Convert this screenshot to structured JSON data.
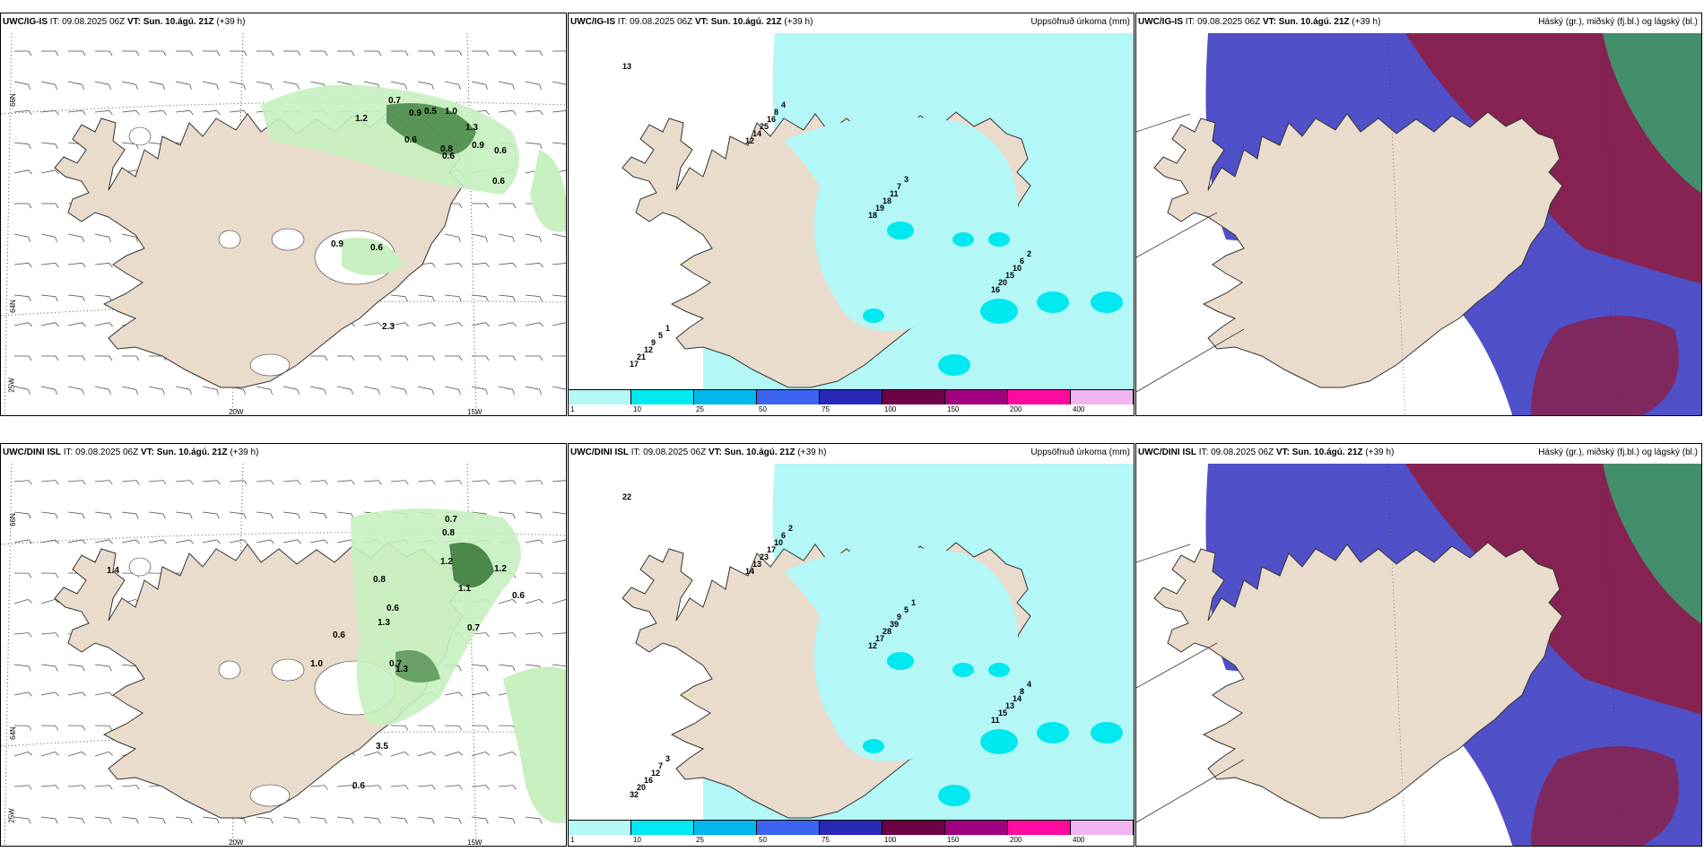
{
  "rows": [
    {
      "model": "UWC/IG-IS",
      "panels": [
        {
          "id": "wind",
          "title_model": "UWC/IG-IS",
          "title_it": " IT: 09.08.2025 06Z ",
          "title_vt_label": "VT:",
          "title_vt": " Sun. 10.ágú. 21Z",
          "title_lead": " (+39 h)",
          "right_title": "",
          "labels": [
            "0.7",
            "1.2",
            "0.9",
            "0.5",
            "1.0",
            "1.3",
            "0.6",
            "0.8",
            "0.6",
            "0.9",
            "0.6",
            "0.6",
            "0.9",
            "0.6",
            "2.3"
          ],
          "axis": {
            "lat_top": "66N",
            "lat_mid": "64N",
            "lon_left": "20W",
            "lon_right": "15W",
            "lon_far": "25W"
          }
        },
        {
          "id": "precip",
          "title_model": "UWC/IG-IS",
          "title_it": " IT: 09.08.2025 06Z ",
          "title_vt_label": "VT:",
          "title_vt": " Sun. 10.ágú. 21Z",
          "title_lead": " (+39 h)",
          "right_title": "Uppsöfnuð úrkoma (mm)",
          "labels": [
            "13",
            "12",
            "18",
            "16",
            "17",
            "14",
            "19",
            "20",
            "21",
            "25",
            "18",
            "15",
            "12",
            "16",
            "11",
            "10",
            "9",
            "8",
            "7",
            "6",
            "5",
            "4",
            "3",
            "2",
            "1"
          ]
        },
        {
          "id": "cloud",
          "title_model": "UWC/IG-IS",
          "title_it": " IT: 09.08.2025 06Z ",
          "title_vt_label": "VT:",
          "title_vt": " Sun. 10.ágú. 21Z",
          "title_lead": " (+39 h)",
          "right_title": "Háský (gr.), miðský (fj.bl.) og lágský (bl.)"
        }
      ]
    },
    {
      "model": "UWC/DINI ISL",
      "panels": [
        {
          "id": "wind",
          "title_model": "UWC/DINI ISL",
          "title_it": " IT: 09.08.2025 06Z ",
          "title_vt_label": "VT:",
          "title_vt": " Sun. 10.ágú. 21Z",
          "title_lead": " (+39 h)",
          "right_title": "",
          "labels": [
            "0.7",
            "0.8",
            "1.2",
            "1.2",
            "0.8",
            "1.1",
            "0.6",
            "1.3",
            "0.7",
            "0.6",
            "1.0",
            "0.7",
            "1.3",
            "3.5",
            "0.6",
            "1.4",
            "0.6"
          ],
          "axis": {
            "lat_top": "66N",
            "lat_mid": "64N",
            "lon_left": "20W",
            "lon_right": "15W",
            "lon_far": "25W"
          }
        },
        {
          "id": "precip",
          "title_model": "UWC/DINI ISL",
          "title_it": " IT: 09.08.2025 06Z ",
          "title_vt_label": "VT:",
          "title_vt": " Sun. 10.ágú. 21Z",
          "title_lead": " (+39 h)",
          "right_title": "Uppsöfnuð úrkoma (mm)",
          "labels": [
            "22",
            "14",
            "12",
            "11",
            "32",
            "13",
            "17",
            "15",
            "20",
            "23",
            "28",
            "13",
            "16",
            "17",
            "39",
            "14",
            "12",
            "10",
            "9",
            "8",
            "7",
            "6",
            "5",
            "4",
            "3",
            "2",
            "1"
          ]
        },
        {
          "id": "cloud",
          "title_model": "UWC/DINI ISL",
          "title_it": " IT: 09.08.2025 06Z ",
          "title_vt_label": "VT:",
          "title_vt": " Sun. 10.ágú. 21Z",
          "title_lead": " (+39 h)",
          "right_title": "Háský (gr.), miðský (fj.bl.) og lágský (bl.)"
        }
      ]
    }
  ],
  "colorbar": {
    "ticks": [
      "1",
      "10",
      "25",
      "50",
      "75",
      "100",
      "150",
      "200",
      "400"
    ],
    "colors": [
      "#b3f7f7",
      "#00e8f0",
      "#00b8ec",
      "#3c64f0",
      "#2828b8",
      "#6e0046",
      "#a00080",
      "#ff0aa0",
      "#f0b4f0"
    ]
  },
  "colors": {
    "land": "#eadccc",
    "precip_light": "#b3f7f7",
    "precip_mid": "#00e8f0",
    "wind_green_light": "#c8f0c0",
    "wind_green_dark": "#2a6e2a",
    "cloud_blue": "#5050c8",
    "cloud_red": "#8c1e46",
    "cloud_green": "#3c9a6e"
  }
}
